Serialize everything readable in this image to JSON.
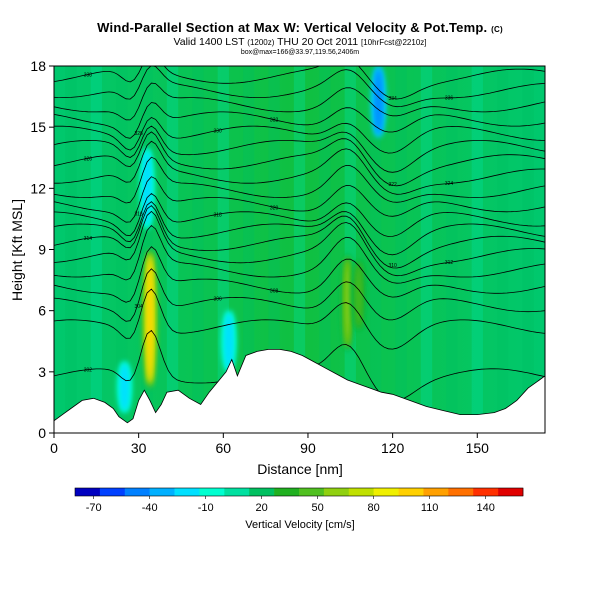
{
  "header": {
    "title": "Wind-Parallel Section at Max W: Vertical Velocity & Pot.Temp.",
    "copyright": "(C)",
    "subtitle_main": "Valid 1400 LST",
    "subtitle_paren": "(1200z)",
    "subtitle_date": "THU 20 Oct 2011",
    "subtitle_run": "[10hrFcst@2210z]",
    "line3": "box@max=166@33.97,119.56,2406m"
  },
  "chart_data": {
    "type": "heatmap",
    "xlabel": "Distance [nm]",
    "ylabel": "Height [Kft MSL]",
    "xlim": [
      0,
      174
    ],
    "ylim": [
      0,
      18
    ],
    "x_ticks": [
      "0",
      "30",
      "60",
      "90",
      "120",
      "150"
    ],
    "y_ticks": [
      "0",
      "3",
      "6",
      "9",
      "12",
      "15",
      "18"
    ],
    "colorbar": {
      "label": "Vertical Velocity [cm/s]",
      "tick_labels": [
        "-70",
        "-40",
        "-10",
        "20",
        "50",
        "80",
        "110",
        "140"
      ],
      "tick_values": [
        -70,
        -40,
        -10,
        20,
        50,
        80,
        110,
        140
      ],
      "range": [
        -80,
        160
      ],
      "colors": [
        "#0000c0",
        "#0040ff",
        "#0080ff",
        "#00b0ff",
        "#00e0ff",
        "#00ffd0",
        "#00e0a0",
        "#00c060",
        "#20b020",
        "#50c020",
        "#90d010",
        "#c0e000",
        "#f0f000",
        "#ffd000",
        "#ffa000",
        "#ff7000",
        "#ff3000",
        "#e00000"
      ]
    },
    "terrain": [
      [
        0,
        0.6
      ],
      [
        3,
        0.9
      ],
      [
        6,
        1.2
      ],
      [
        10,
        1.6
      ],
      [
        14,
        1.7
      ],
      [
        18,
        1.5
      ],
      [
        21,
        1.2
      ],
      [
        23,
        0.8
      ],
      [
        26,
        0.5
      ],
      [
        28,
        0.7
      ],
      [
        30,
        1.6
      ],
      [
        32,
        2.1
      ],
      [
        34,
        1.6
      ],
      [
        36,
        1.0
      ],
      [
        38,
        1.4
      ],
      [
        40,
        2.0
      ],
      [
        44,
        2.1
      ],
      [
        48,
        1.7
      ],
      [
        52,
        1.4
      ],
      [
        55,
        2.0
      ],
      [
        58,
        2.5
      ],
      [
        61,
        3.0
      ],
      [
        63,
        3.6
      ],
      [
        65,
        2.8
      ],
      [
        68,
        3.8
      ],
      [
        72,
        4.0
      ],
      [
        76,
        4.1
      ],
      [
        80,
        4.1
      ],
      [
        84,
        4.0
      ],
      [
        88,
        3.8
      ],
      [
        92,
        3.5
      ],
      [
        96,
        3.2
      ],
      [
        100,
        2.9
      ],
      [
        104,
        2.6
      ],
      [
        108,
        2.4
      ],
      [
        112,
        2.2
      ],
      [
        116,
        2.0
      ],
      [
        120,
        1.9
      ],
      [
        126,
        1.6
      ],
      [
        132,
        1.3
      ],
      [
        138,
        1.1
      ],
      [
        144,
        0.9
      ],
      [
        150,
        0.9
      ],
      [
        156,
        1.0
      ],
      [
        160,
        1.2
      ],
      [
        164,
        1.6
      ],
      [
        168,
        2.2
      ],
      [
        172,
        2.6
      ],
      [
        174,
        2.8
      ]
    ],
    "updrafts": [
      {
        "x": 34,
        "y_bottom": 2.2,
        "y_top": 9.0,
        "peak_cms": 120
      },
      {
        "x": 104,
        "y_bottom": 4.0,
        "y_top": 8.8,
        "peak_cms": 75
      },
      {
        "x": 108,
        "y_bottom": 5.0,
        "y_top": 8.5,
        "peak_cms": 55
      }
    ],
    "downdrafts": [
      {
        "x": 115,
        "y_bottom": 14.5,
        "y_top": 18,
        "min_cms": -55
      },
      {
        "x": 33,
        "y_bottom": 10.0,
        "y_top": 14.0,
        "min_cms": -25
      },
      {
        "x": 25,
        "y_bottom": 1.0,
        "y_top": 3.5,
        "min_cms": -20
      },
      {
        "x": 62,
        "y_bottom": 3.0,
        "y_top": 6.0,
        "min_cms": -20
      }
    ],
    "theta_contours": [
      {
        "label": "302",
        "base": 2.8
      },
      {
        "label": "304",
        "base": 5.2
      },
      {
        "label": "306",
        "base": 6.3
      },
      {
        "label": "308",
        "base": 7.2
      },
      {
        "label": "310",
        "base": 8.0
      },
      {
        "label": "312",
        "base": 8.7
      },
      {
        "label": "314",
        "base": 9.3
      },
      {
        "label": "316",
        "base": 9.9
      },
      {
        "label": "318",
        "base": 10.5
      },
      {
        "label": "320",
        "base": 11.2
      },
      {
        "label": "322",
        "base": 11.9
      },
      {
        "label": "324",
        "base": 12.6
      },
      {
        "label": "326",
        "base": 13.3
      },
      {
        "label": "328",
        "base": 14.0
      },
      {
        "label": "330",
        "base": 14.7
      },
      {
        "label": "332",
        "base": 15.4
      },
      {
        "label": "334",
        "base": 16.1
      },
      {
        "label": "336",
        "base": 16.8
      },
      {
        "label": "338",
        "base": 17.5
      }
    ]
  }
}
